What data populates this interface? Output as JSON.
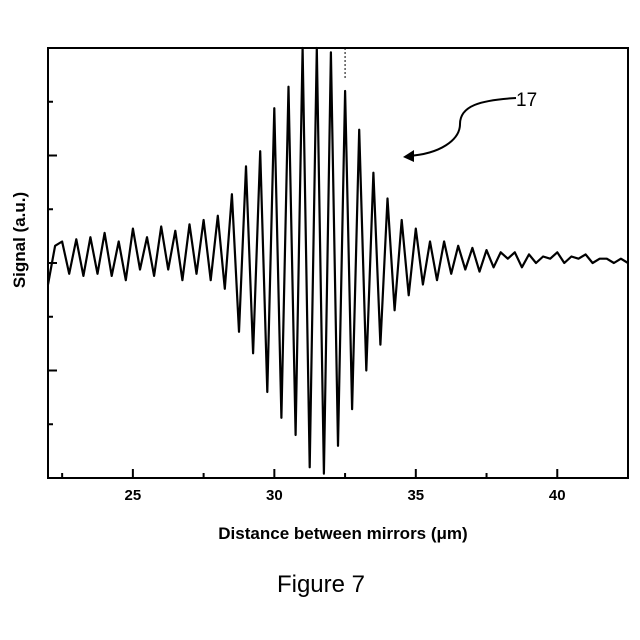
{
  "chart_data": {
    "type": "line",
    "title": "",
    "xlabel": "Distance between mirrors (μm)",
    "ylabel": "Signal (a.u.)",
    "xlim": [
      22.0,
      42.5
    ],
    "ylim": [
      -1.0,
      1.0
    ],
    "x_ticks": [
      25,
      30,
      35,
      40
    ],
    "x_tick_labels": [
      "25",
      "30",
      "35",
      "40"
    ],
    "y_tick_labels_shown": false,
    "grid": false,
    "legend": "none",
    "annotation": {
      "label": "17",
      "arrow_points_to": {
        "x": 34.0,
        "y": 0.55
      }
    },
    "vertical_marker_x": 32.5,
    "series": [
      {
        "color": "#000000",
        "x": [
          22.0,
          22.25,
          22.5,
          22.75,
          23.0,
          23.25,
          23.5,
          23.75,
          24.0,
          24.25,
          24.5,
          24.75,
          25.0,
          25.25,
          25.5,
          25.75,
          26.0,
          26.25,
          26.5,
          26.75,
          27.0,
          27.25,
          27.5,
          27.75,
          28.0,
          28.25,
          28.5,
          28.75,
          29.0,
          29.25,
          29.5,
          29.75,
          30.0,
          30.25,
          30.5,
          30.75,
          31.0,
          31.25,
          31.5,
          31.75,
          32.0,
          32.25,
          32.5,
          32.75,
          33.0,
          33.25,
          33.5,
          33.75,
          34.0,
          34.25,
          34.5,
          34.75,
          35.0,
          35.25,
          35.5,
          35.75,
          36.0,
          36.25,
          36.5,
          36.75,
          37.0,
          37.25,
          37.5,
          37.75,
          38.0,
          38.25,
          38.5,
          38.75,
          39.0,
          39.25,
          39.5,
          39.75,
          40.0,
          40.25,
          40.5,
          40.75,
          41.0,
          41.25,
          41.5,
          41.75,
          42.0,
          42.25,
          42.5
        ],
        "y": [
          -0.1,
          0.08,
          0.1,
          -0.05,
          0.11,
          -0.06,
          0.12,
          -0.05,
          0.14,
          -0.06,
          0.1,
          -0.08,
          0.16,
          -0.03,
          0.12,
          -0.06,
          0.17,
          -0.03,
          0.15,
          -0.08,
          0.18,
          -0.05,
          0.2,
          -0.08,
          0.22,
          -0.12,
          0.32,
          -0.32,
          0.45,
          -0.42,
          0.52,
          -0.6,
          0.72,
          -0.72,
          0.82,
          -0.8,
          1.0,
          -0.95,
          1.0,
          -0.98,
          0.98,
          -0.85,
          0.8,
          -0.68,
          0.62,
          -0.5,
          0.42,
          -0.38,
          0.3,
          -0.22,
          0.2,
          -0.15,
          0.16,
          -0.1,
          0.1,
          -0.08,
          0.1,
          -0.05,
          0.08,
          -0.03,
          0.07,
          -0.04,
          0.06,
          -0.02,
          0.05,
          0.02,
          0.05,
          -0.02,
          0.04,
          0.0,
          0.03,
          0.02,
          0.05,
          0.0,
          0.03,
          0.02,
          0.04,
          0.0,
          0.02,
          0.02,
          0.0,
          0.02,
          0.0
        ]
      }
    ]
  },
  "figure_caption": "Figure 7",
  "reference_label": "17"
}
